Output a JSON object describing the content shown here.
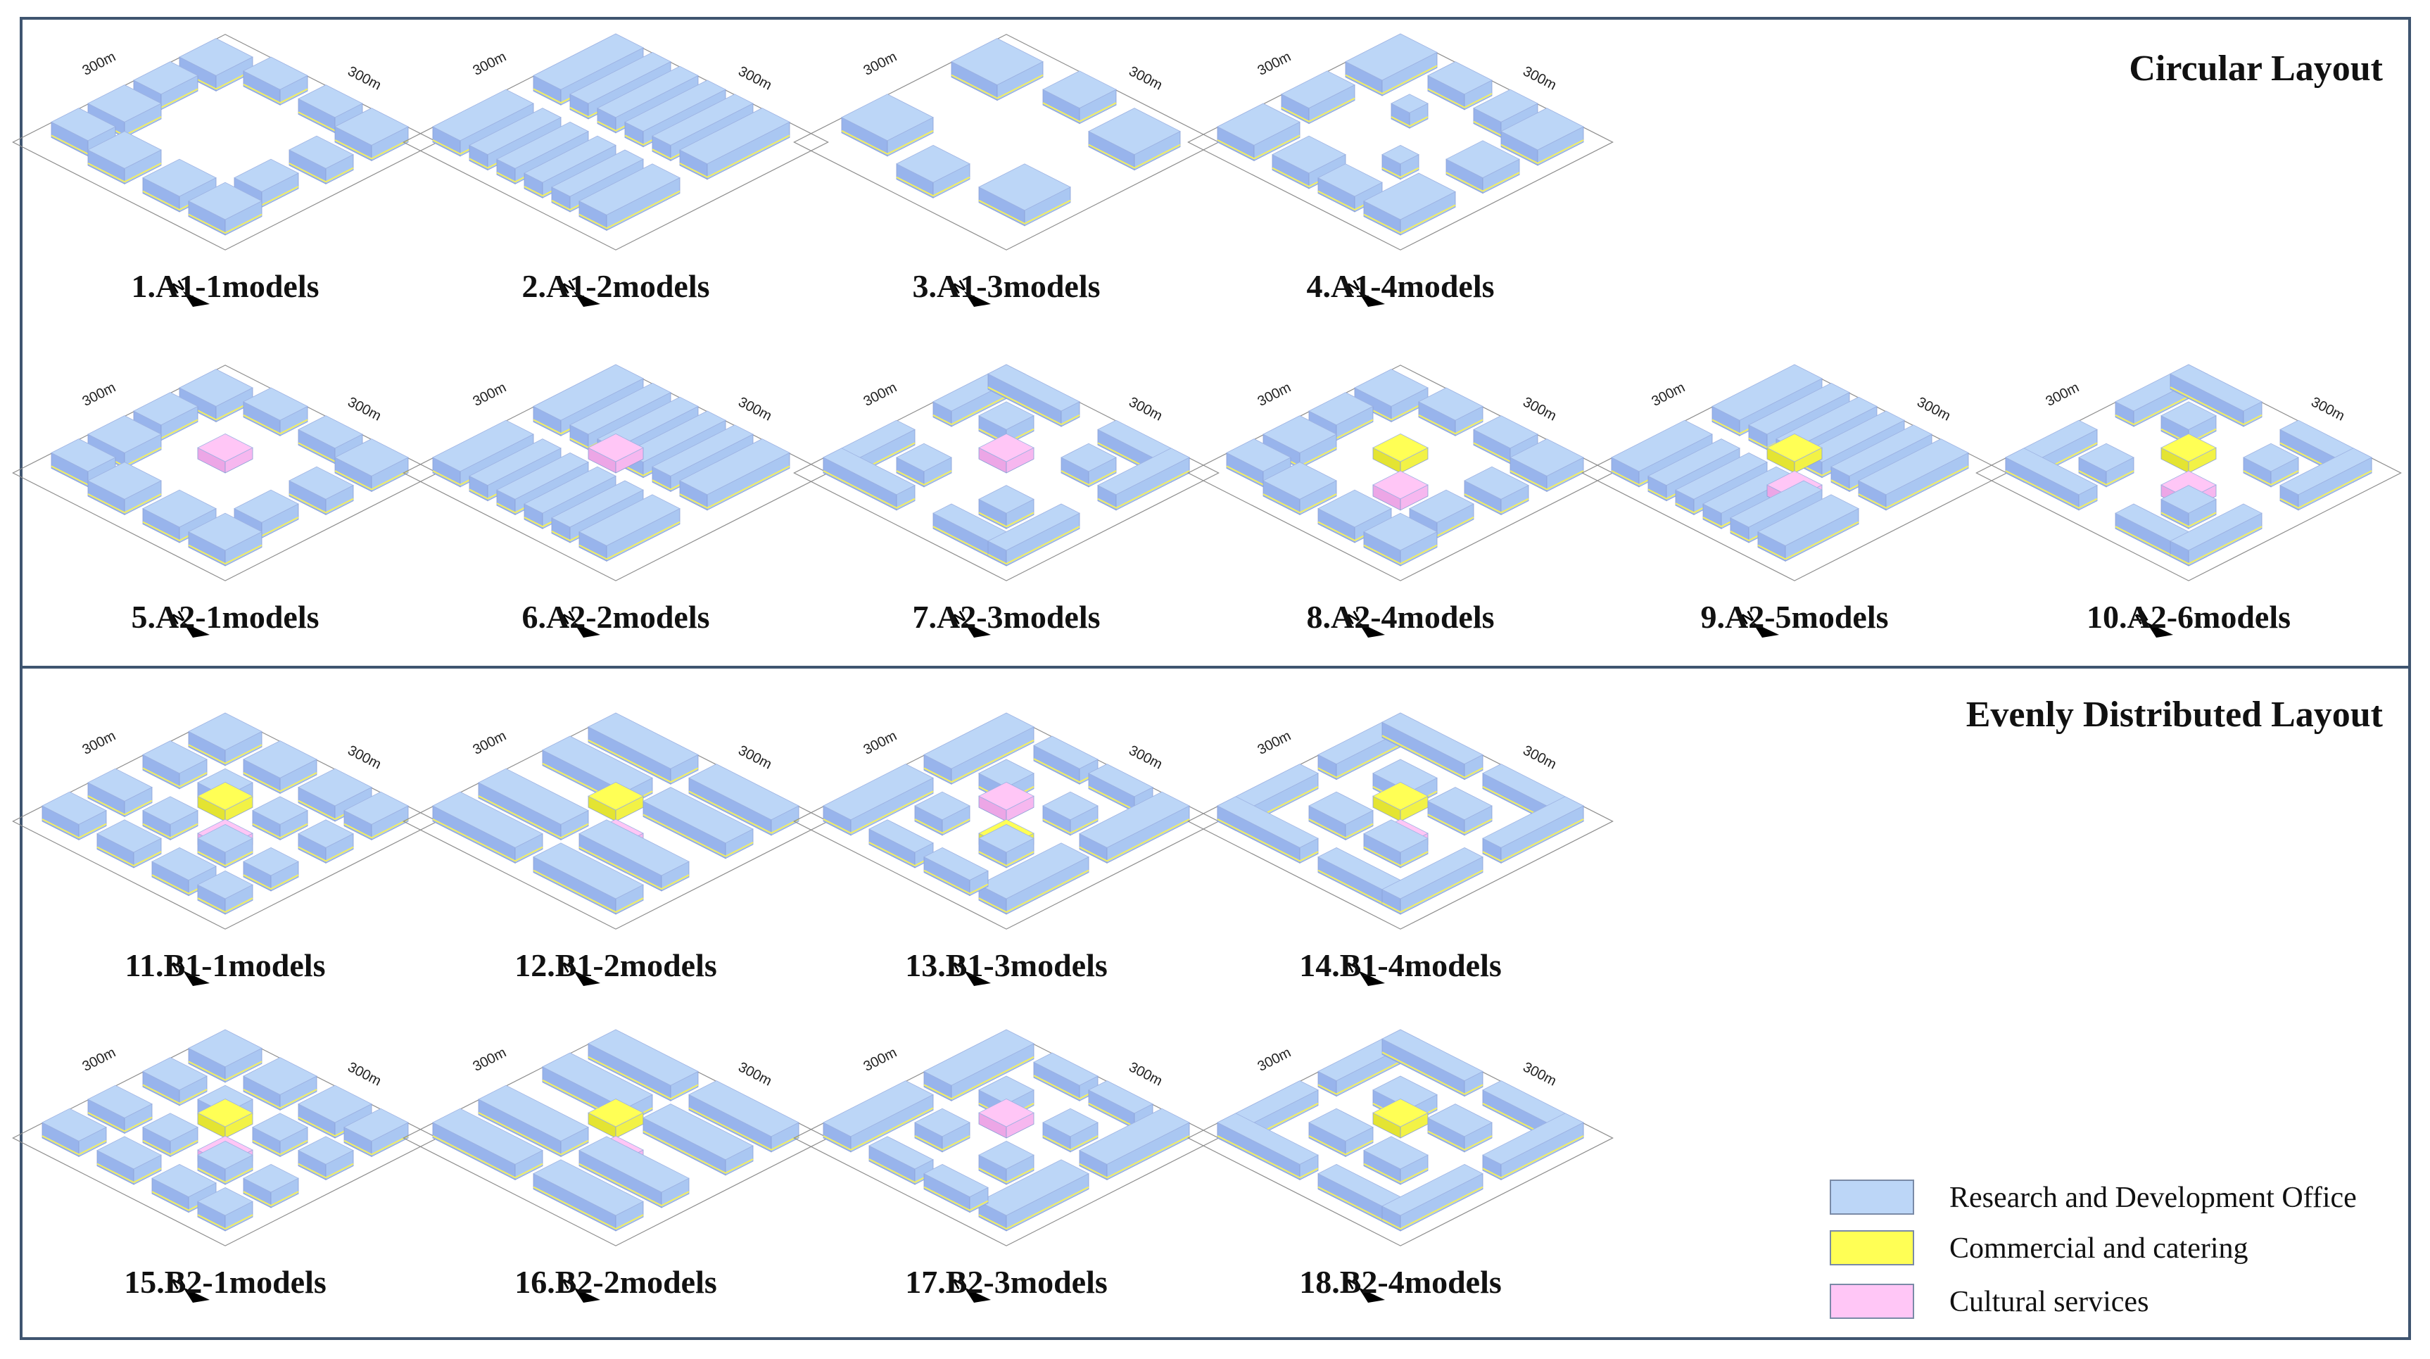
{
  "colors": {
    "research_top": "#bcd6f7",
    "research_left": "#98b4ec",
    "research_right": "#aac7f2",
    "commercial_top": "#ffff55",
    "commercial_left": "#e4e432",
    "commercial_right": "#f2f246",
    "cultural_top": "#ffc6f6",
    "cultural_left": "#eca6e6",
    "cultural_right": "#f6b7ef",
    "frame": "#3f5570"
  },
  "sections": [
    {
      "title": "Circular Layout",
      "models": [
        {
          "label": "1.A1-1models",
          "pattern": "ring",
          "accents": []
        },
        {
          "label": "2.A1-2models",
          "pattern": "ring-rows",
          "accents": []
        },
        {
          "label": "3.A1-3models",
          "pattern": "ring-sparse",
          "accents": []
        },
        {
          "label": "4.A1-4models",
          "pattern": "ring-mixed",
          "accents": []
        },
        {
          "label": "5.A2-1models",
          "pattern": "ring",
          "accents": [
            "cultural"
          ]
        },
        {
          "label": "6.A2-2models",
          "pattern": "ring-rows",
          "accents": [
            "cultural"
          ]
        },
        {
          "label": "7.A2-3models",
          "pattern": "ring-courtyard",
          "accents": [
            "cultural"
          ]
        },
        {
          "label": "8.A2-4models",
          "pattern": "ring",
          "accents": [
            "commercial",
            "cultural"
          ]
        },
        {
          "label": "9.A2-5models",
          "pattern": "ring-rows",
          "accents": [
            "commercial",
            "cultural"
          ]
        },
        {
          "label": "10.A2-6models",
          "pattern": "ring-courtyard",
          "accents": [
            "commercial",
            "cultural"
          ]
        }
      ]
    },
    {
      "title": "Evenly Distributed Layout",
      "models": [
        {
          "label": "11.B1-1models",
          "pattern": "grid",
          "accents": [
            "commercial",
            "cultural"
          ]
        },
        {
          "label": "12.B1-2models",
          "pattern": "grid-long",
          "accents": [
            "commercial",
            "cultural"
          ]
        },
        {
          "label": "13.B1-3models",
          "pattern": "grid-courtyard",
          "accents": [
            "cultural",
            "commercial"
          ]
        },
        {
          "label": "14.B1-4models",
          "pattern": "grid-mixed",
          "accents": [
            "commercial",
            "cultural"
          ]
        },
        {
          "label": "15.B2-1models",
          "pattern": "grid",
          "accents": [
            "commercial",
            "cultural"
          ]
        },
        {
          "label": "16.B2-2models",
          "pattern": "grid-long",
          "accents": [
            "commercial",
            "cultural"
          ]
        },
        {
          "label": "17.B2-3models",
          "pattern": "grid-courtyard",
          "accents": [
            "cultural"
          ]
        },
        {
          "label": "18.B2-4models",
          "pattern": "grid-mixed",
          "accents": [
            "commercial"
          ]
        }
      ]
    }
  ],
  "dimension_label": "300m",
  "north_label": "N",
  "legend": [
    {
      "label": "Research and Development Office",
      "color": "#bcd6f7"
    },
    {
      "label": "Commercial and catering",
      "color": "#ffff55"
    },
    {
      "label": "Cultural services",
      "color": "#ffc6f6"
    }
  ]
}
